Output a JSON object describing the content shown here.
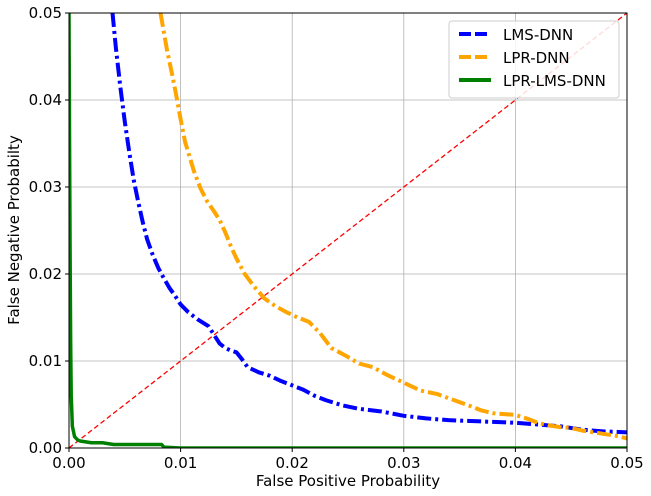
{
  "chart_data": {
    "type": "line",
    "xlabel": "False Positive Probability",
    "ylabel": "False Negative Probabilty",
    "xlim": [
      0,
      0.05
    ],
    "ylim": [
      0,
      0.05
    ],
    "grid": true,
    "legend_position": "top-right",
    "xticks": [
      "0.00",
      "0.01",
      "0.02",
      "0.03",
      "0.04",
      "0.05"
    ],
    "yticks": [
      "0.00",
      "0.01",
      "0.02",
      "0.03",
      "0.04",
      "0.05"
    ],
    "series": [
      {
        "name": "LMS-DNN",
        "color": "#0000ff",
        "style": "dashdot",
        "x": [
          0.0039,
          0.0042,
          0.0046,
          0.005,
          0.0054,
          0.0058,
          0.0062,
          0.0066,
          0.007,
          0.0075,
          0.008,
          0.0085,
          0.009,
          0.0095,
          0.01,
          0.0107,
          0.0115,
          0.0125,
          0.013,
          0.0135,
          0.014,
          0.0145,
          0.015,
          0.0155,
          0.016,
          0.017,
          0.018,
          0.019,
          0.02,
          0.021,
          0.022,
          0.023,
          0.0245,
          0.026,
          0.028,
          0.03,
          0.032,
          0.034,
          0.036,
          0.038,
          0.04,
          0.042,
          0.044,
          0.046,
          0.048,
          0.05
        ],
        "y": [
          0.05,
          0.046,
          0.0415,
          0.0375,
          0.034,
          0.0308,
          0.0283,
          0.026,
          0.024,
          0.0222,
          0.0207,
          0.0195,
          0.0184,
          0.0175,
          0.0165,
          0.0156,
          0.0148,
          0.014,
          0.013,
          0.012,
          0.0115,
          0.0112,
          0.011,
          0.0102,
          0.0093,
          0.0087,
          0.0083,
          0.0077,
          0.0072,
          0.0067,
          0.006,
          0.0055,
          0.0049,
          0.0045,
          0.0042,
          0.0037,
          0.0034,
          0.0032,
          0.0031,
          0.003,
          0.0029,
          0.0027,
          0.0025,
          0.0021,
          0.0019,
          0.0018
        ]
      },
      {
        "name": "LPR-DNN",
        "color": "#ffa500",
        "style": "dashdot",
        "x": [
          0.0082,
          0.0085,
          0.0088,
          0.0092,
          0.0096,
          0.01,
          0.0104,
          0.0108,
          0.0112,
          0.0118,
          0.0124,
          0.013,
          0.0135,
          0.014,
          0.0145,
          0.015,
          0.0157,
          0.0165,
          0.0175,
          0.0185,
          0.0195,
          0.0205,
          0.0215,
          0.0225,
          0.0235,
          0.0248,
          0.026,
          0.0272,
          0.0285,
          0.03,
          0.0315,
          0.033,
          0.0345,
          0.036,
          0.037,
          0.038,
          0.039,
          0.04,
          0.041,
          0.042,
          0.043,
          0.044,
          0.045,
          0.046,
          0.047,
          0.048,
          0.049,
          0.05
        ],
        "y": [
          0.05,
          0.0478,
          0.0456,
          0.0432,
          0.0406,
          0.0378,
          0.0352,
          0.0335,
          0.0318,
          0.0298,
          0.0283,
          0.0272,
          0.0262,
          0.0248,
          0.0232,
          0.0218,
          0.0201,
          0.0187,
          0.0172,
          0.0163,
          0.0156,
          0.015,
          0.0145,
          0.0132,
          0.0115,
          0.0106,
          0.0097,
          0.0093,
          0.0084,
          0.0075,
          0.0066,
          0.0062,
          0.0055,
          0.0048,
          0.0043,
          0.004,
          0.0039,
          0.0038,
          0.0034,
          0.0029,
          0.0026,
          0.0024,
          0.0023,
          0.002,
          0.0018,
          0.0016,
          0.0014,
          0.0011
        ]
      },
      {
        "name": "LPR-LMS-DNN",
        "color": "#008000",
        "style": "solid",
        "x": [
          0.0,
          5e-05,
          0.0001,
          0.00015,
          0.0002,
          0.0003,
          0.0005,
          0.0008,
          0.001,
          0.002,
          0.003,
          0.004,
          0.005,
          0.006,
          0.007,
          0.0083,
          0.0085,
          0.01,
          0.02,
          0.03,
          0.04,
          0.05
        ],
        "y": [
          0.05,
          0.035,
          0.022,
          0.012,
          0.006,
          0.0025,
          0.0013,
          0.0009,
          0.0008,
          0.0006,
          0.0006,
          0.0004,
          0.0004,
          0.0004,
          0.0004,
          0.0004,
          0.0001,
          0.0,
          0.0,
          0.0,
          0.0,
          0.0
        ]
      },
      {
        "name": "",
        "color": "#ff0000",
        "style": "dashed",
        "x": [
          0,
          0.05
        ],
        "y": [
          0,
          0.05
        ]
      }
    ]
  }
}
